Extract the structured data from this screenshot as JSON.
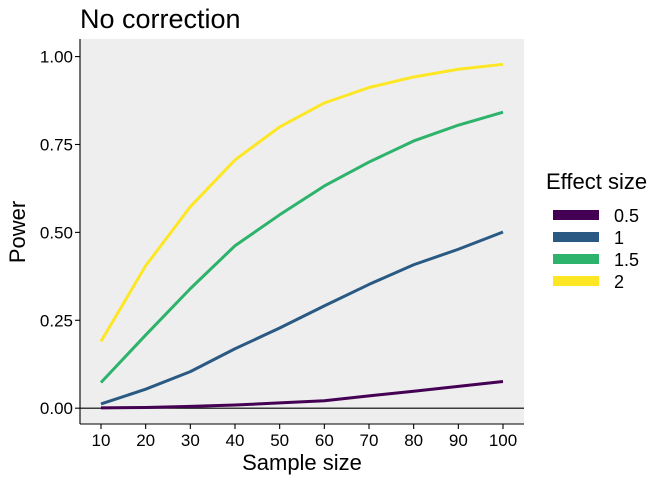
{
  "chart_data": {
    "type": "line",
    "title": "No correction",
    "xlabel": "Sample size",
    "ylabel": "Power",
    "x": [
      10,
      20,
      30,
      40,
      50,
      60,
      70,
      80,
      90,
      100
    ],
    "xlim": [
      5.3,
      104.7
    ],
    "ylim": [
      -0.045,
      1.05
    ],
    "xticks": [
      10,
      20,
      30,
      40,
      50,
      60,
      70,
      80,
      90,
      100
    ],
    "xtick_labels": [
      "10",
      "20",
      "30",
      "40",
      "50",
      "60",
      "70",
      "80",
      "90",
      "100"
    ],
    "yticks": [
      0,
      0.25,
      0.5,
      0.75,
      1
    ],
    "ytick_labels": [
      "0.00",
      "0.25",
      "0.50",
      "0.75",
      "1.00"
    ],
    "hline": 0,
    "grid": false,
    "panel_background": "#eeeeee",
    "legend": {
      "title": "Effect size",
      "position": "right"
    },
    "series": [
      {
        "name": "0.5",
        "color": "#440154",
        "values": [
          0.001,
          0.002,
          0.005,
          0.009,
          0.015,
          0.021,
          0.035,
          0.048,
          0.062,
          0.076
        ]
      },
      {
        "name": "1",
        "color": "#2a5a83",
        "values": [
          0.012,
          0.054,
          0.104,
          0.169,
          0.228,
          0.291,
          0.352,
          0.408,
          0.452,
          0.501
        ]
      },
      {
        "name": "1.5",
        "color": "#2db36b",
        "values": [
          0.073,
          0.208,
          0.34,
          0.462,
          0.55,
          0.632,
          0.7,
          0.76,
          0.805,
          0.842
        ]
      },
      {
        "name": "2",
        "color": "#fde725",
        "values": [
          0.19,
          0.405,
          0.573,
          0.706,
          0.8,
          0.868,
          0.912,
          0.942,
          0.964,
          0.978
        ]
      }
    ]
  }
}
